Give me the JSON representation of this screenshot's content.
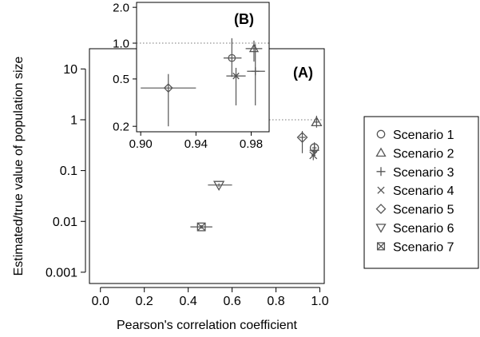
{
  "chart_data": [
    {
      "panel": "A",
      "type": "scatter",
      "panel_label": "(A)",
      "xlabel": "Pearson's correlation coefficient",
      "ylabel": "Estimated/true value of population size",
      "xlim": [
        -0.05,
        1.02
      ],
      "ylim": [
        0.0006,
        25
      ],
      "yscale": "log",
      "xticks": [
        0.0,
        0.2,
        0.4,
        0.6,
        0.8,
        1.0
      ],
      "xtick_labels": [
        "0.0",
        "0.2",
        "0.4",
        "0.6",
        "0.8",
        "1.0"
      ],
      "yticks": [
        0.001,
        0.01,
        0.1,
        1,
        10
      ],
      "ytick_labels": [
        "0.001",
        "0.01",
        "0.1",
        "1",
        "10"
      ],
      "reference_line_y": 1,
      "series": [
        {
          "name": "Scenario 1",
          "marker": "circle",
          "x": 0.975,
          "y": 0.28,
          "xerr": [
            0.965,
            0.985
          ],
          "yerr": [
            0.22,
            0.36
          ]
        },
        {
          "name": "Scenario 2",
          "marker": "triangle-up",
          "x": 0.985,
          "y": 0.9,
          "xerr": [
            0.975,
            0.995
          ],
          "yerr": [
            0.7,
            1.2
          ]
        },
        {
          "name": "Scenario 3",
          "marker": "plus",
          "x": 0.975,
          "y": 0.25,
          "xerr": [
            0.965,
            0.99
          ],
          "yerr": [
            0.2,
            0.32
          ]
        },
        {
          "name": "Scenario 4",
          "marker": "x",
          "x": 0.97,
          "y": 0.2,
          "xerr": [
            0.962,
            0.98
          ],
          "yerr": [
            0.16,
            0.26
          ]
        },
        {
          "name": "Scenario 5",
          "marker": "diamond",
          "x": 0.92,
          "y": 0.45,
          "xerr": [
            0.905,
            0.935
          ],
          "yerr": [
            0.22,
            0.6
          ]
        },
        {
          "name": "Scenario 6",
          "marker": "triangle-down",
          "x": 0.54,
          "y": 0.052,
          "xerr": [
            0.49,
            0.6
          ],
          "yerr": [
            0.048,
            0.056
          ]
        },
        {
          "name": "Scenario 7",
          "marker": "square-x",
          "x": 0.46,
          "y": 0.0078,
          "xerr": [
            0.41,
            0.51
          ],
          "yerr": [
            0.0072,
            0.0085
          ]
        }
      ]
    },
    {
      "panel": "B",
      "type": "scatter",
      "panel_label": "(B)",
      "xlim": [
        0.897,
        0.993
      ],
      "ylim": [
        0.18,
        2.2
      ],
      "yscale": "log",
      "xticks": [
        0.9,
        0.94,
        0.98
      ],
      "xtick_labels": [
        "0.90",
        "0.94",
        "0.98"
      ],
      "yticks": [
        0.2,
        0.5,
        1.0,
        2.0
      ],
      "ytick_labels": [
        "0.2",
        "0.5",
        "1.0",
        "2.0"
      ],
      "reference_line_y": 1,
      "series": [
        {
          "name": "Scenario 1",
          "marker": "circle",
          "x": 0.966,
          "y": 0.75,
          "xerr": [
            0.96,
            0.973
          ],
          "yerr": [
            0.52,
            1.1
          ]
        },
        {
          "name": "Scenario 2",
          "marker": "triangle-up",
          "x": 0.982,
          "y": 0.9,
          "xerr": [
            0.976,
            0.988
          ],
          "yerr": [
            0.7,
            1.05
          ]
        },
        {
          "name": "Scenario 3",
          "marker": "plus",
          "x": 0.983,
          "y": 0.58,
          "xerr": [
            0.977,
            0.99
          ],
          "yerr": [
            0.3,
            0.98
          ]
        },
        {
          "name": "Scenario 4",
          "marker": "x",
          "x": 0.969,
          "y": 0.53,
          "xerr": [
            0.962,
            0.976
          ],
          "yerr": [
            0.3,
            0.62
          ]
        },
        {
          "name": "Scenario 5",
          "marker": "diamond",
          "x": 0.92,
          "y": 0.42,
          "xerr": [
            0.9,
            0.94
          ],
          "yerr": [
            0.2,
            0.55
          ]
        }
      ]
    }
  ],
  "legend": {
    "placement": "right",
    "items": [
      {
        "label": "Scenario 1",
        "marker": "circle"
      },
      {
        "label": "Scenario 2",
        "marker": "triangle-up"
      },
      {
        "label": "Scenario 3",
        "marker": "plus"
      },
      {
        "label": "Scenario 4",
        "marker": "x"
      },
      {
        "label": "Scenario 5",
        "marker": "diamond"
      },
      {
        "label": "Scenario 6",
        "marker": "triangle-down"
      },
      {
        "label": "Scenario 7",
        "marker": "square-x"
      }
    ]
  },
  "colors": {
    "marker": "#555555",
    "errorbar": "#555555",
    "axis": "#000000",
    "reference_line": "#777777"
  }
}
